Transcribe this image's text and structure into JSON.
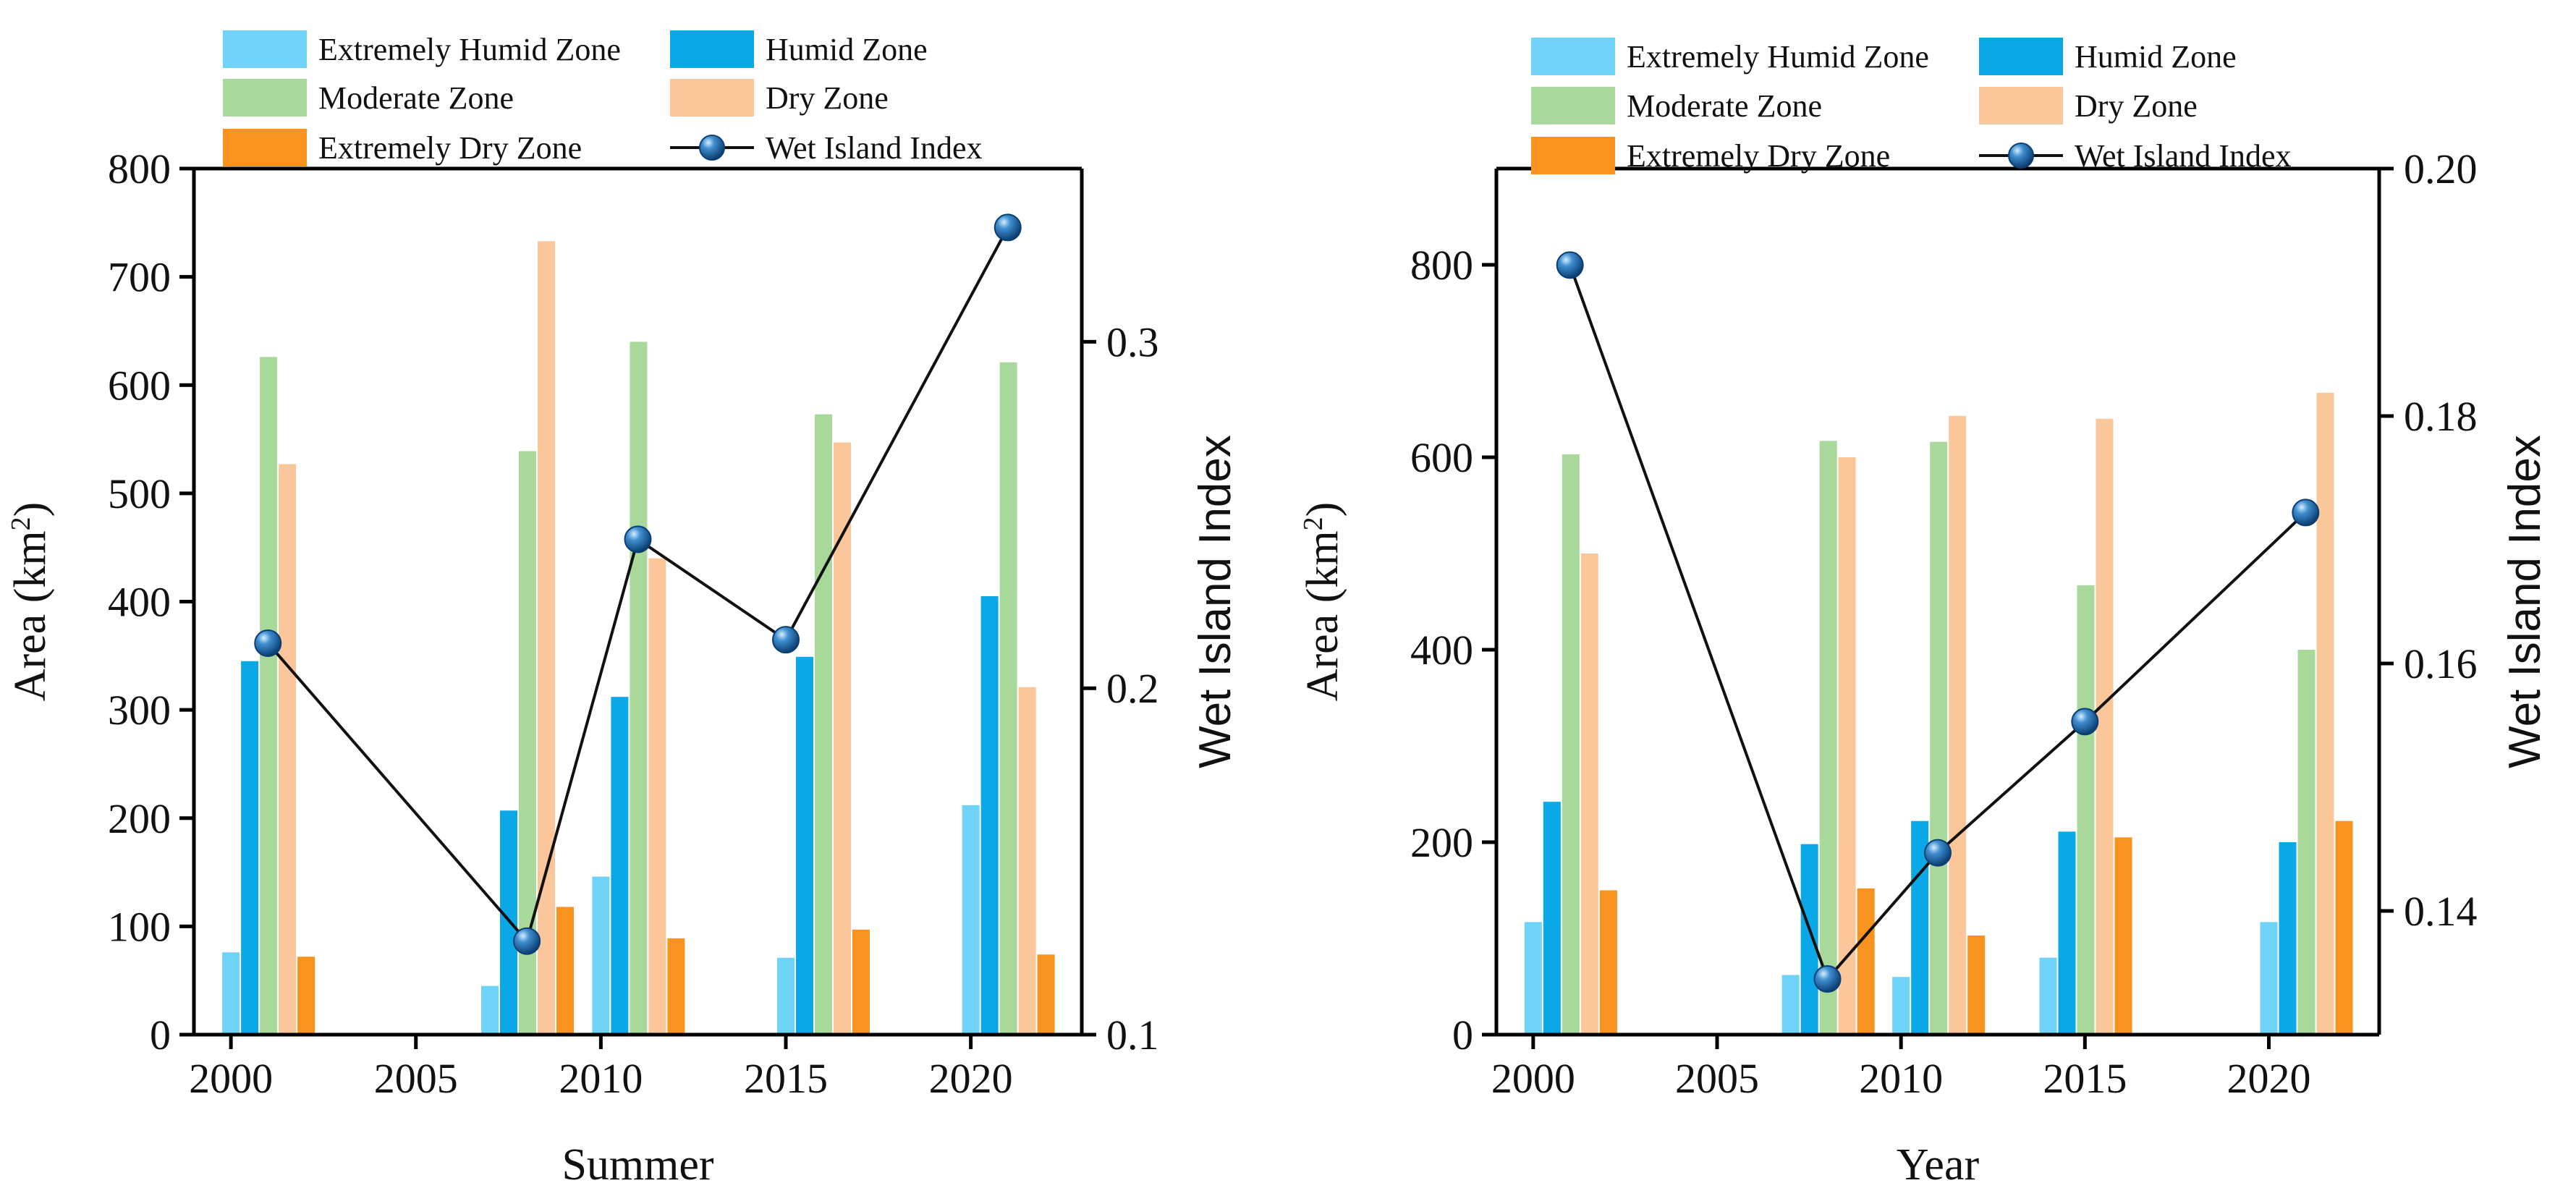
{
  "chart_data": [
    {
      "type": "bar",
      "xlabel": "Summer",
      "ylabel": "Area (km",
      "ylabel_sup": "2",
      "ylabel_close": ")",
      "y2label": "Wet Island Index",
      "xlim": [
        1999,
        2023
      ],
      "ylim": [
        0,
        800
      ],
      "y2lim": [
        0.1,
        0.35
      ],
      "x_ticks": [
        "2000",
        "2005",
        "2010",
        "2015",
        "2020"
      ],
      "y_ticks": [
        "0",
        "100",
        "200",
        "300",
        "400",
        "500",
        "600",
        "700",
        "800"
      ],
      "y2_ticks": [
        "0.1",
        "0.2",
        "0.3"
      ],
      "years": [
        2000,
        2007,
        2010,
        2015,
        2020
      ],
      "series": [
        {
          "name": "Extremely Humid Zone",
          "color": "#6fd3f7",
          "values": [
            76,
            45,
            146,
            71,
            212
          ]
        },
        {
          "name": "Humid Zone",
          "color": "#0aa8e6",
          "values": [
            345,
            207,
            312,
            349,
            405
          ]
        },
        {
          "name": "Moderate Zone",
          "color": "#a8d89a",
          "values": [
            626,
            539,
            640,
            573,
            621
          ]
        },
        {
          "name": "Dry Zone",
          "color": "#fbc79a",
          "values": [
            527,
            733,
            440,
            547,
            321
          ]
        },
        {
          "name": "Extremely Dry Zone",
          "color": "#f7931e",
          "values": [
            72,
            118,
            89,
            97,
            74
          ]
        }
      ],
      "line": {
        "name": "Wet Island Index",
        "color": "#111111",
        "marker_color": "#1a6aa8",
        "x": [
          2001,
          2008,
          2011,
          2015,
          2021
        ],
        "values": [
          0.213,
          0.127,
          0.243,
          0.214,
          0.333
        ]
      }
    },
    {
      "type": "bar",
      "xlabel": "Year",
      "ylabel": "Area (km",
      "ylabel_sup": "2",
      "ylabel_close": ")",
      "y2label": "Wet Island Index",
      "xlim": [
        1999,
        2023
      ],
      "ylim": [
        0,
        900
      ],
      "y2lim": [
        0.13,
        0.2
      ],
      "x_ticks": [
        "2000",
        "2005",
        "2010",
        "2015",
        "2020"
      ],
      "y_ticks": [
        "0",
        "200",
        "400",
        "600",
        "800"
      ],
      "y2_ticks": [
        "0.14",
        "0.16",
        "0.18",
        "0.20"
      ],
      "years": [
        2000,
        2007,
        2010,
        2014,
        2020
      ],
      "series": [
        {
          "name": "Extremely Humid Zone",
          "color": "#6fd3f7",
          "values": [
            117,
            62,
            60,
            80,
            117
          ]
        },
        {
          "name": "Humid Zone",
          "color": "#0aa8e6",
          "values": [
            242,
            198,
            222,
            211,
            200
          ]
        },
        {
          "name": "Moderate Zone",
          "color": "#a8d89a",
          "values": [
            603,
            617,
            616,
            467,
            400
          ]
        },
        {
          "name": "Dry Zone",
          "color": "#fbc79a",
          "values": [
            500,
            600,
            643,
            640,
            667
          ]
        },
        {
          "name": "Extremely Dry Zone",
          "color": "#f7931e",
          "values": [
            150,
            152,
            103,
            205,
            222
          ]
        }
      ],
      "line": {
        "name": "Wet Island Index",
        "color": "#111111",
        "marker_color": "#1a6aa8",
        "x": [
          2001,
          2008,
          2011,
          2015,
          2021
        ],
        "values": [
          0.1922,
          0.1345,
          0.1447,
          0.1553,
          0.1722
        ]
      }
    }
  ]
}
